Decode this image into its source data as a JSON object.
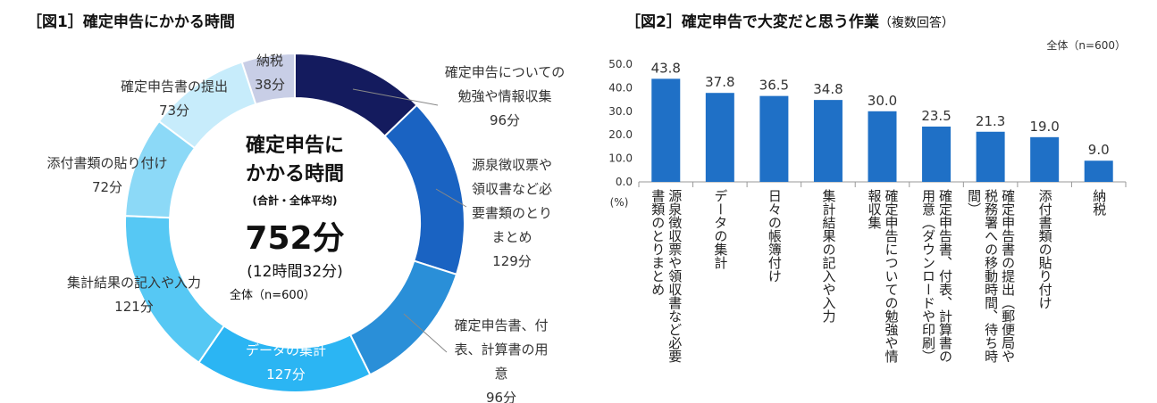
{
  "chart_data": [
    {
      "type": "donut",
      "title": "［図1］確定申告にかかる時間",
      "center_title": "確定申告にかかる時間",
      "center_subtitle": "(合計・全体平均)",
      "center_total": "752分",
      "center_total_alt": "(12時間32分)",
      "center_note": "全体（n=600）",
      "categories": [
        "確定申告についての勉強や情報収集",
        "源泉徴収票や領収書など必要書類のとりまとめ",
        "確定申告書、付表、計算書の用意",
        "データの集計",
        "集計結果の記入や入力",
        "添付書類の貼り付け",
        "確定申告書の提出",
        "納税"
      ],
      "values": [
        96,
        129,
        96,
        127,
        121,
        72,
        73,
        38
      ],
      "value_labels": [
        "96分",
        "129分",
        "96分",
        "127分",
        "121分",
        "72分",
        "73分",
        "38分"
      ],
      "colors": [
        "#141b5e",
        "#1a63c2",
        "#2a8fd8",
        "#2bb5f3",
        "#56c8f4",
        "#8cd9f7",
        "#c7ecfb",
        "#c8cee6"
      ]
    },
    {
      "type": "bar",
      "title": "［図2］確定申告で大変だと思う作業",
      "subtitle": "（複数回答）",
      "note": "全体（n=600）",
      "y_unit": "(%)",
      "categories": [
        "源泉徴収票や領収書など必要書類のとりまとめ",
        "データの集計",
        "日々の帳簿付け",
        "集計結果の記入や入力",
        "確定申告についての勉強や情報収集",
        "確定申告書、付表、計算書の用意（ダウンロードや印刷）",
        "確定申告書の提出（郵便局や税務署への移動時間、待ち時間）",
        "添付書類の貼り付け",
        "納税"
      ],
      "values": [
        43.8,
        37.8,
        36.5,
        34.8,
        30.0,
        23.5,
        21.3,
        19.0,
        9.0
      ],
      "value_labels": [
        "43.8",
        "37.8",
        "36.5",
        "34.8",
        "30.0",
        "23.5",
        "21.3",
        "19.0",
        "9.0"
      ],
      "color": "#1f70c6",
      "ylim": [
        0,
        50
      ],
      "yticks": [
        {
          "value": 0,
          "label": "0.0"
        },
        {
          "value": 10,
          "label": "10.0"
        },
        {
          "value": 20,
          "label": "20.0"
        },
        {
          "value": 30,
          "label": "30.0"
        },
        {
          "value": 40,
          "label": "40.0"
        },
        {
          "value": 50,
          "label": "50.0"
        }
      ]
    }
  ]
}
